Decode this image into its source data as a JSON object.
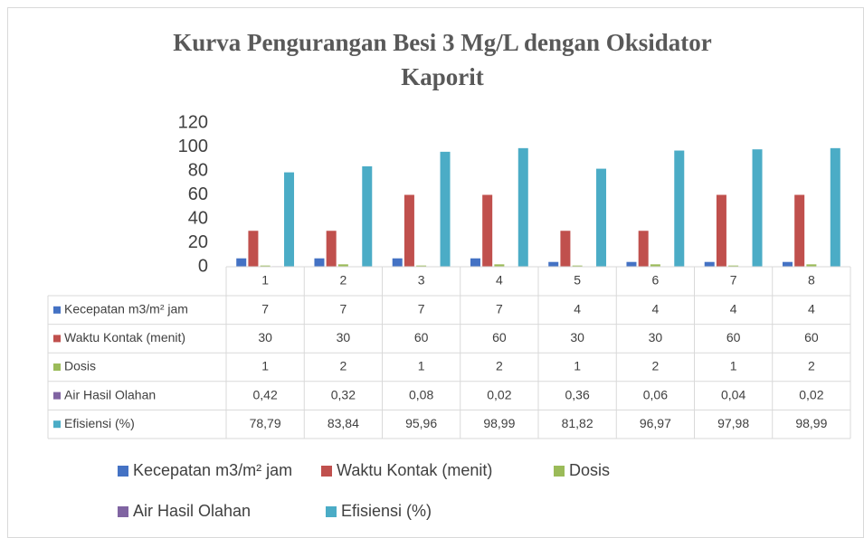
{
  "chart_data": {
    "type": "bar",
    "title": "Kurva Pengurangan Besi 3 Mg/L dengan Oksidator Kaporit",
    "categories": [
      "1",
      "2",
      "3",
      "4",
      "5",
      "6",
      "7",
      "8"
    ],
    "series": [
      {
        "name": "Kecepatan m3/m² jam",
        "color": "#4472c4",
        "values": [
          7,
          7,
          7,
          7,
          4,
          4,
          4,
          4
        ]
      },
      {
        "name": "Waktu Kontak (menit)",
        "color": "#c0504d",
        "values": [
          30,
          30,
          60,
          60,
          30,
          30,
          60,
          60
        ]
      },
      {
        "name": "Dosis",
        "color": "#9bbb59",
        "values": [
          1,
          2,
          1,
          2,
          1,
          2,
          1,
          2
        ]
      },
      {
        "name": "Air Hasil Olahan",
        "color": "#8064a2",
        "values": [
          0.42,
          0.32,
          0.08,
          0.02,
          0.36,
          0.06,
          0.04,
          0.02
        ],
        "value_labels": [
          "0,42",
          "0,32",
          "0,08",
          "0,02",
          "0,36",
          "0,06",
          "0,04",
          "0,02"
        ]
      },
      {
        "name": "Efisiensi (%)",
        "color": "#4bacc6",
        "values": [
          78.79,
          83.84,
          95.96,
          98.99,
          81.82,
          96.97,
          97.98,
          98.99
        ],
        "value_labels": [
          "78,79",
          "83,84",
          "95,96",
          "98,99",
          "81,82",
          "96,97",
          "97,98",
          "98,99"
        ]
      }
    ],
    "ylim": [
      0,
      120
    ],
    "yticks": [
      0,
      20,
      40,
      60,
      80,
      100,
      120
    ],
    "grid": false,
    "legend": "bottom"
  }
}
